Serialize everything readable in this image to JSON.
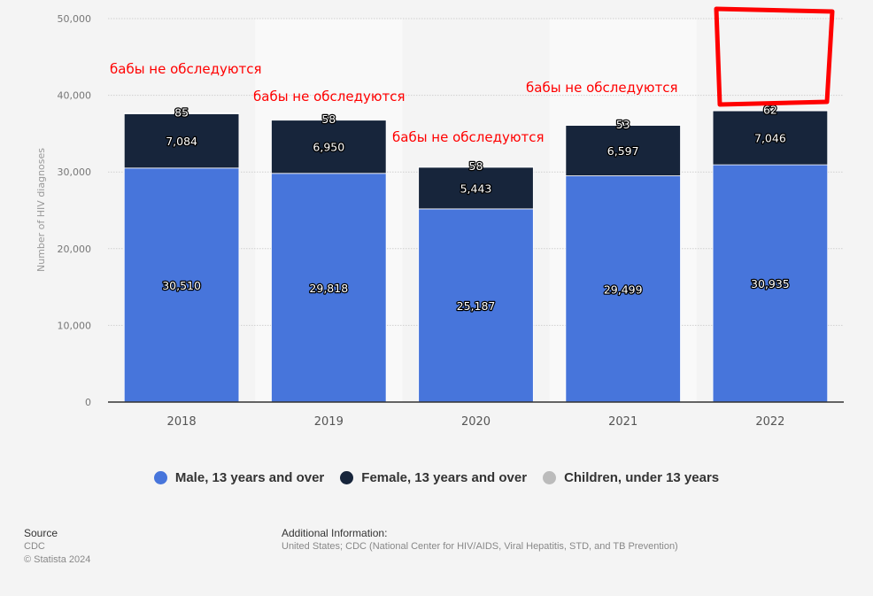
{
  "chart_data": {
    "type": "bar",
    "stacked": true,
    "title": "",
    "xlabel": "",
    "ylabel": "Number of HIV diagnoses",
    "ylim": [
      0,
      50000
    ],
    "yticks": [
      0,
      10000,
      20000,
      30000,
      40000,
      50000
    ],
    "ytick_labels": [
      "0",
      "10,000",
      "20,000",
      "30,000",
      "40,000",
      "50,000"
    ],
    "grid": true,
    "categories": [
      "2018",
      "2019",
      "2020",
      "2021",
      "2022"
    ],
    "series": [
      {
        "name": "Male, 13 years and over",
        "color": "#4775db",
        "values": [
          30510,
          29818,
          25187,
          29499,
          30935
        ],
        "labels": [
          "30,510",
          "29,818",
          "25,187",
          "29,499",
          "30,935"
        ]
      },
      {
        "name": "Female, 13 years and over",
        "color": "#17253b",
        "values": [
          7084,
          6950,
          5443,
          6597,
          7046
        ],
        "labels": [
          "7,084",
          "6,950",
          "5,443",
          "6,597",
          "7,046"
        ]
      },
      {
        "name": "Children, under 13 years",
        "color": "#bbbbbb",
        "values": [
          85,
          58,
          58,
          53,
          62
        ],
        "labels": [
          "85",
          "58",
          "58",
          "53",
          "62"
        ]
      }
    ],
    "legend_position": "bottom-center",
    "annotations": [
      {
        "text": "бабы не обследуются",
        "near_category": "2018"
      },
      {
        "text": "бабы не обследуются",
        "near_category": "2019"
      },
      {
        "text": "бабы не обследуются",
        "near_category": "2020"
      },
      {
        "text": "бабы не обследуются",
        "near_category": "2021"
      }
    ],
    "highlight_box": {
      "category": "2022",
      "color": "#ff0000",
      "description": "hand-drawn red rectangle above the 2022 bar"
    }
  },
  "legend": [
    {
      "label": "Male, 13 years and over",
      "color": "#4775db"
    },
    {
      "label": "Female, 13 years and over",
      "color": "#17253b"
    },
    {
      "label": "Children, under 13 years",
      "color": "#bbbbbb"
    }
  ],
  "footer": {
    "source_title": "Source",
    "source_name": "CDC",
    "copyright": "© Statista 2024",
    "info_title": "Additional Information:",
    "info_text": "United States; CDC (National Center for HIV/AIDS, Viral Hepatitis, STD, and TB Prevention)"
  }
}
